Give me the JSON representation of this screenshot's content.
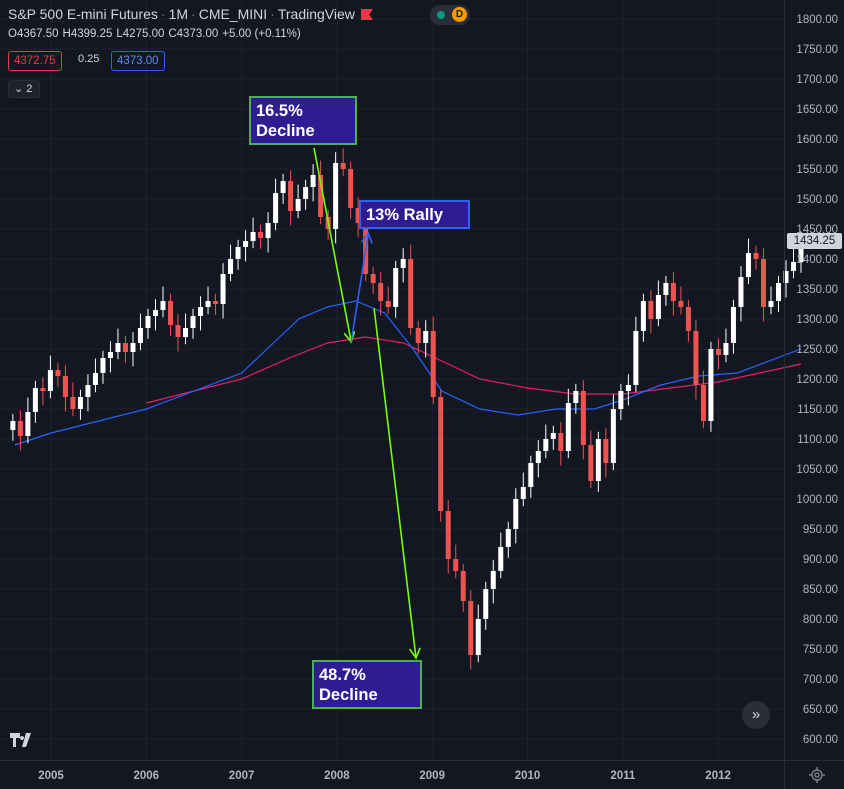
{
  "header": {
    "symbol": "S&P 500 E-mini Futures",
    "interval": "1M",
    "exchange": "CME_MINI",
    "source": "TradingView",
    "delay_badge": "D"
  },
  "ohlc": {
    "open": "O4367.50",
    "high": "H4399.25",
    "low": "L4275.00",
    "close": "C4373.00",
    "change": "+5.00 (+0.11%)"
  },
  "quote": {
    "bid": "4372.75",
    "spread": "0.25",
    "ask": "4373.00"
  },
  "indicators_toggle": {
    "label": "2"
  },
  "last_price_label": "1434.25",
  "annotations": [
    {
      "line1": "16.5%",
      "line2": "Decline"
    },
    {
      "line1": "13% Rally",
      "line2": ""
    },
    {
      "line1": "48.7%",
      "line2": "Decline"
    }
  ],
  "colors": {
    "up": "#ffffff",
    "down": "#ef5350",
    "ma_fast": "#2962ff",
    "ma_slow": "#e91e63",
    "arrow": "#76ff03",
    "callout_bg": "#311b92"
  },
  "chart_data": {
    "type": "candlestick",
    "y_axis_ticks": [
      "1800.00",
      "1750.00",
      "1700.00",
      "1650.00",
      "1600.00",
      "1550.00",
      "1500.00",
      "1450.00",
      "1400.00",
      "1350.00",
      "1300.00",
      "1250.00",
      "1200.00",
      "1150.00",
      "1100.00",
      "1050.00",
      "1000.00",
      "950.00",
      "900.00",
      "850.00",
      "800.00",
      "750.00",
      "700.00",
      "650.00",
      "600.00"
    ],
    "x_axis_ticks": [
      "2005",
      "2006",
      "2007",
      "2008",
      "2009",
      "2010",
      "2011",
      "2012"
    ],
    "ylim": [
      585,
      1815
    ],
    "xlim": [
      2004.6,
      2012.87
    ],
    "closes": [
      1130,
      1105,
      1145,
      1185,
      1180,
      1215,
      1205,
      1170,
      1150,
      1170,
      1190,
      1210,
      1235,
      1245,
      1260,
      1245,
      1260,
      1285,
      1305,
      1315,
      1330,
      1290,
      1270,
      1285,
      1305,
      1320,
      1330,
      1325,
      1375,
      1400,
      1420,
      1430,
      1445,
      1435,
      1460,
      1510,
      1530,
      1480,
      1500,
      1520,
      1540,
      1470,
      1450,
      1560,
      1550,
      1485,
      1460,
      1375,
      1360,
      1330,
      1320,
      1385,
      1400,
      1285,
      1260,
      1280,
      1170,
      980,
      900,
      880,
      830,
      740,
      800,
      850,
      880,
      920,
      950,
      1000,
      1020,
      1060,
      1080,
      1100,
      1110,
      1080,
      1160,
      1180,
      1090,
      1030,
      1100,
      1060,
      1150,
      1180,
      1190,
      1280,
      1330,
      1300,
      1340,
      1360,
      1330,
      1320,
      1280,
      1190,
      1130,
      1250,
      1240,
      1260,
      1320,
      1370,
      1410,
      1400,
      1320,
      1330,
      1360,
      1380,
      1395,
      1434
    ],
    "ma_fast_points": [
      [
        2004.62,
        1090
      ],
      [
        2005.0,
        1110
      ],
      [
        2005.5,
        1130
      ],
      [
        2006.0,
        1150
      ],
      [
        2006.5,
        1180
      ],
      [
        2007.0,
        1210
      ],
      [
        2007.3,
        1255
      ],
      [
        2007.6,
        1300
      ],
      [
        2007.9,
        1320
      ],
      [
        2008.2,
        1330
      ],
      [
        2008.5,
        1310
      ],
      [
        2008.8,
        1250
      ],
      [
        2009.1,
        1180
      ],
      [
        2009.5,
        1150
      ],
      [
        2009.9,
        1140
      ],
      [
        2010.3,
        1150
      ],
      [
        2010.7,
        1150
      ],
      [
        2011.0,
        1165
      ],
      [
        2011.4,
        1190
      ],
      [
        2011.8,
        1205
      ],
      [
        2012.2,
        1210
      ],
      [
        2012.87,
        1250
      ]
    ],
    "ma_slow_points": [
      [
        2006.0,
        1160
      ],
      [
        2006.5,
        1180
      ],
      [
        2007.0,
        1200
      ],
      [
        2007.5,
        1235
      ],
      [
        2007.9,
        1260
      ],
      [
        2008.3,
        1270
      ],
      [
        2008.7,
        1260
      ],
      [
        2009.1,
        1230
      ],
      [
        2009.5,
        1200
      ],
      [
        2010.0,
        1185
      ],
      [
        2010.5,
        1175
      ],
      [
        2011.0,
        1175
      ],
      [
        2011.5,
        1185
      ],
      [
        2012.0,
        1195
      ],
      [
        2012.87,
        1225
      ]
    ],
    "arrows": [
      {
        "from": [
          2007.76,
          1585
        ],
        "to": [
          2008.15,
          1262
        ]
      },
      {
        "from": [
          2008.15,
          1262
        ],
        "to": [
          2008.33,
          1443
        ]
      },
      {
        "from": [
          2008.39,
          1318
        ],
        "to": [
          2008.83,
          735
        ]
      }
    ]
  }
}
